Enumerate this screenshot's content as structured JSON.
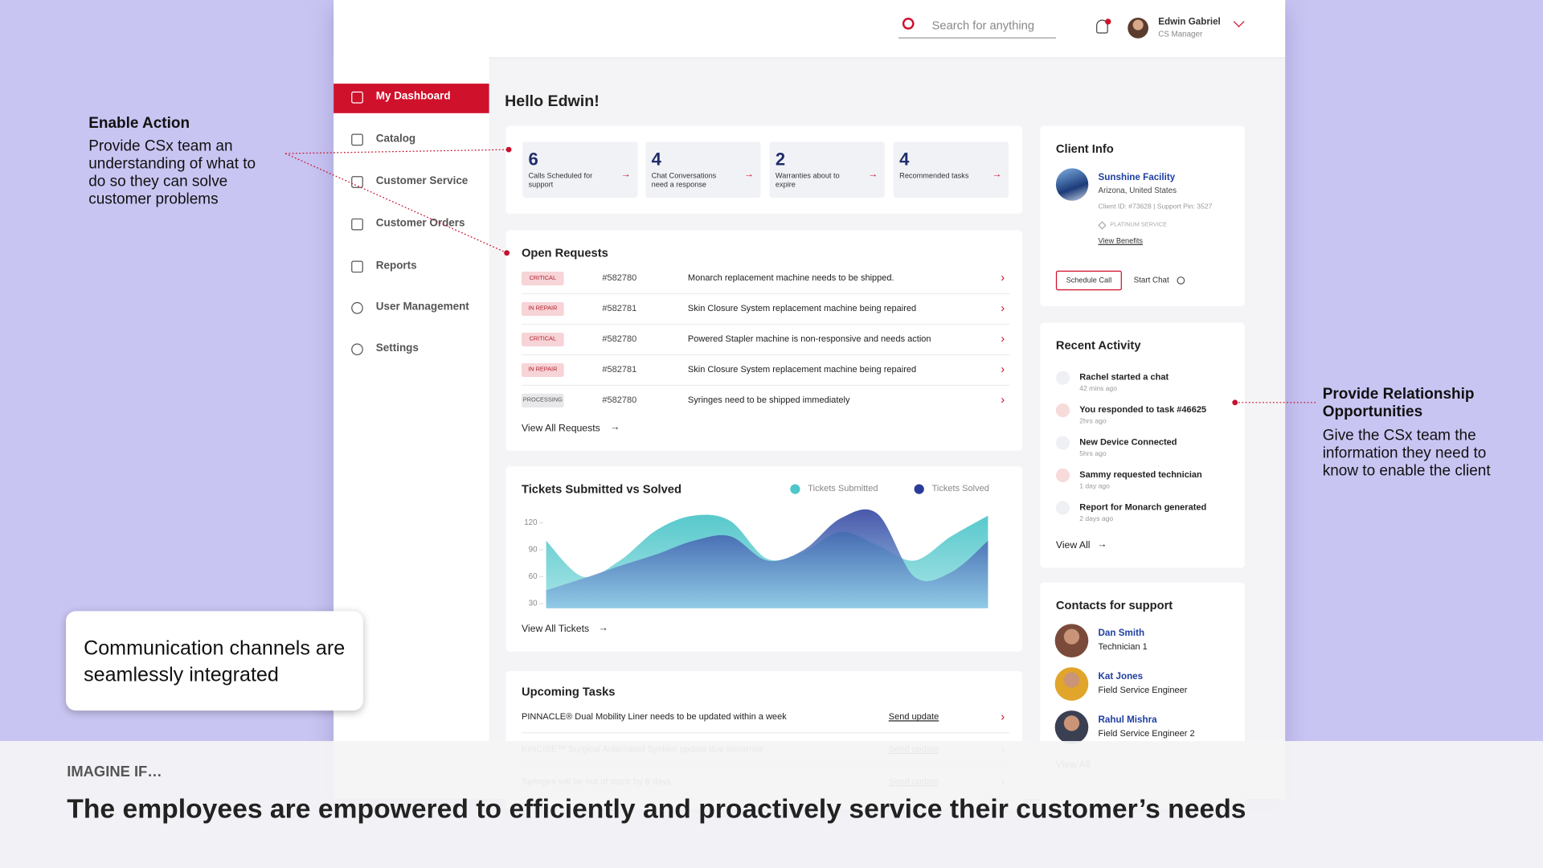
{
  "header": {
    "search_placeholder": "Search for anything",
    "user_name": "Edwin Gabriel",
    "user_role": "CS Manager"
  },
  "sidebar": {
    "items": [
      "My Dashboard",
      "Catalog",
      "Customer Service",
      "Customer Orders",
      "Reports",
      "User Management",
      "Settings"
    ]
  },
  "greeting": "Hello Edwin!",
  "stats": [
    {
      "value": 6,
      "label": "Calls Scheduled for support"
    },
    {
      "value": 4,
      "label": "Chat Conversations need a response"
    },
    {
      "value": 2,
      "label": "Warranties about to expire"
    },
    {
      "value": 4,
      "label": "Recommended tasks"
    }
  ],
  "open_requests": {
    "title": "Open Requests",
    "link": "View All Requests",
    "rows": [
      {
        "status": "CRITICAL",
        "badge_color": "#f7d4d7",
        "id": "#582780",
        "description": "Monarch replacement machine needs to be shipped."
      },
      {
        "status": "IN REPAIR",
        "badge_color": "#f7d4d7",
        "id": "#582781",
        "description": "Skin Closure System replacement machine being repaired"
      },
      {
        "status": "CRITICAL",
        "badge_color": "#f7d4d7",
        "id": "#582780",
        "description": "Powered Stapler machine is non-responsive and needs action"
      },
      {
        "status": "IN REPAIR",
        "badge_color": "#f7d4d7",
        "id": "#582781",
        "description": "Skin Closure System replacement machine being repaired"
      },
      {
        "status": "PROCESSING",
        "badge_color": "#e8e8ea",
        "id": "#582780",
        "description": "Syringes need to be shipped immediately"
      }
    ]
  },
  "tickets_chart": {
    "type": "area",
    "title": "Tickets Submitted vs Solved",
    "link": "View All Tickets",
    "ylim": [
      25,
      140
    ],
    "yticks": [
      30,
      60,
      90,
      120
    ],
    "series": [
      {
        "name": "Tickets Submitted",
        "color": "#4fc6c9",
        "values": [
          100,
          60,
          78,
          112,
          128,
          122,
          80,
          88,
          110,
          95,
          78,
          105,
          128
        ]
      },
      {
        "name": "Tickets Solved",
        "color": "#2a3b9c",
        "values": [
          45,
          58,
          72,
          85,
          100,
          105,
          78,
          90,
          125,
          130,
          60,
          65,
          100
        ]
      }
    ]
  },
  "upcoming_tasks": {
    "title": "Upcoming Tasks",
    "rows": [
      {
        "task": "PINNACLE® Dual Mobility Liner needs to be updated within a week",
        "action": "Send update"
      },
      {
        "task": "KINCISE™ Surgical Automated System update due tomorrow",
        "action": "Send update"
      },
      {
        "task": "Syringes will be out of stock by 6 days",
        "action": "Send update"
      }
    ]
  },
  "client_info": {
    "title": "Client Info",
    "name": "Sunshine Facility",
    "location": "Arizona, United States",
    "ids": "Client ID: #73628 | Support Pin: 3527",
    "tier": "PLATINUM SERVICE",
    "benefits_link": "View Benefits",
    "schedule_button": "Schedule Call",
    "chat_link": "Start Chat"
  },
  "recent_activity": {
    "title": "Recent Activity",
    "link": "View All",
    "items": [
      {
        "text": "Rachel started a chat",
        "time": "42 mins ago"
      },
      {
        "text": "You responded to task #46625",
        "time": "2hrs ago"
      },
      {
        "text": "New Device Connected",
        "time": "5hrs ago"
      },
      {
        "text": "Sammy requested technician",
        "time": "1 day ago"
      },
      {
        "text": "Report for Monarch generated",
        "time": "2 days ago"
      }
    ]
  },
  "contacts": {
    "title": "Contacts for support",
    "link": "View All",
    "people": [
      {
        "name": "Dan Smith",
        "role": "Technician 1"
      },
      {
        "name": "Kat Jones",
        "role": "Field Service Engineer"
      },
      {
        "name": "Rahul Mishra",
        "role": "Field Service Engineer 2"
      }
    ]
  },
  "annotations": [
    {
      "title": "Enable Action",
      "body": "Provide CSx team an understanding of what to do so they can solve customer problems"
    },
    {
      "title": "Provide Relationship Opportunities",
      "body": "Give the CSx team the information they need to know to enable the client"
    }
  ],
  "callout": "Communication channels are seamlessly integrated",
  "banner": {
    "eyebrow": "IMAGINE IF…",
    "headline": "The employees are empowered to efficiently and proactively service their customer’s needs"
  }
}
